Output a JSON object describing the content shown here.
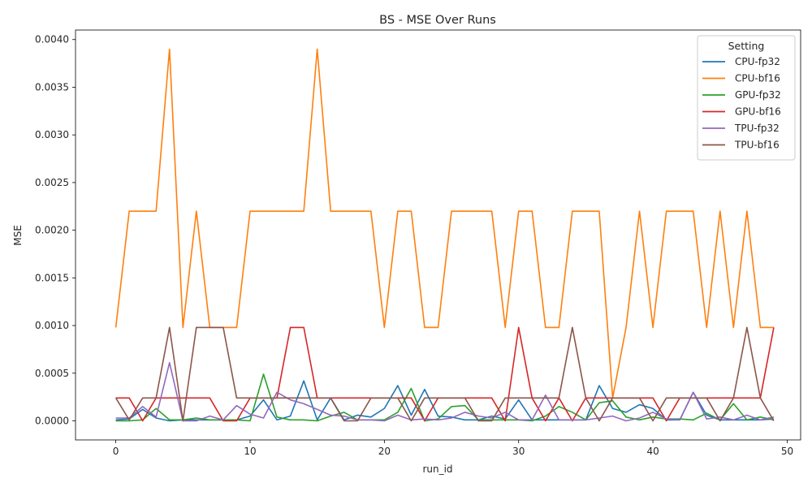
{
  "chart_data": {
    "type": "line",
    "title": "BS - MSE Over Runs",
    "xlabel": "run_id",
    "ylabel": "MSE",
    "xlim": [
      -3,
      51
    ],
    "ylim": [
      -0.0002,
      0.0041
    ],
    "xticks": [
      0,
      10,
      20,
      30,
      40,
      50
    ],
    "xtick_labels": [
      "0",
      "10",
      "20",
      "30",
      "40",
      "50"
    ],
    "yticks": [
      0,
      0.0005,
      0.001,
      0.0015,
      0.002,
      0.0025,
      0.003,
      0.0035,
      0.004
    ],
    "ytick_labels": [
      "0.0000",
      "0.0005",
      "0.0010",
      "0.0015",
      "0.0020",
      "0.0025",
      "0.0030",
      "0.0035",
      "0.0040"
    ],
    "grid": false,
    "legend": {
      "title": "Setting",
      "placement": "top-right"
    },
    "x": [
      0,
      1,
      2,
      3,
      4,
      5,
      6,
      7,
      8,
      9,
      10,
      11,
      12,
      13,
      14,
      15,
      16,
      17,
      18,
      19,
      20,
      21,
      22,
      23,
      24,
      25,
      26,
      27,
      28,
      29,
      30,
      31,
      32,
      33,
      34,
      35,
      36,
      37,
      38,
      39,
      40,
      41,
      42,
      43,
      44,
      45,
      46,
      47,
      48,
      49
    ],
    "series": [
      {
        "name": "CPU-fp32",
        "color": "#1f77b4",
        "values": [
          1e-05,
          2e-05,
          0.00012,
          3e-05,
          0.0,
          1e-05,
          1e-05,
          1e-05,
          1e-05,
          1e-05,
          5e-05,
          0.00022,
          1e-05,
          5e-05,
          0.00042,
          1e-05,
          0.00024,
          1e-05,
          6e-05,
          4e-05,
          0.00013,
          0.00037,
          6e-05,
          0.00033,
          5e-05,
          4e-05,
          1e-05,
          1e-05,
          5e-05,
          2e-05,
          0.00022,
          1e-05,
          1e-05,
          1e-05,
          1e-05,
          1e-05,
          0.00037,
          0.00013,
          9e-05,
          0.00017,
          0.00013,
          1e-05,
          1e-05,
          0.0003,
          6e-05,
          1e-05,
          1e-05,
          1e-05,
          1e-05,
          2e-05
        ]
      },
      {
        "name": "CPU-bf16",
        "color": "#ff7f0e",
        "values": [
          0.00098,
          0.0022,
          0.0022,
          0.0022,
          0.0039,
          0.00098,
          0.0022,
          0.00098,
          0.00098,
          0.00098,
          0.0022,
          0.0022,
          0.0022,
          0.0022,
          0.0022,
          0.0039,
          0.0022,
          0.0022,
          0.0022,
          0.0022,
          0.00098,
          0.0022,
          0.0022,
          0.00098,
          0.00098,
          0.0022,
          0.0022,
          0.0022,
          0.0022,
          0.00098,
          0.0022,
          0.0022,
          0.00098,
          0.00098,
          0.0022,
          0.0022,
          0.0022,
          0.00024,
          0.00098,
          0.0022,
          0.00098,
          0.0022,
          0.0022,
          0.0022,
          0.00098,
          0.0022,
          0.00098,
          0.0022,
          0.00098,
          0.00098
        ]
      },
      {
        "name": "GPU-fp32",
        "color": "#2ca02c",
        "values": [
          0.0,
          0.0,
          1e-05,
          0.00013,
          1e-05,
          1e-05,
          3e-05,
          1e-05,
          1e-05,
          1e-05,
          0.0,
          0.00049,
          4e-05,
          1e-05,
          1e-05,
          0.0,
          5e-05,
          9e-05,
          1e-05,
          1e-05,
          1e-05,
          9e-05,
          0.00034,
          0.0,
          2e-05,
          0.00015,
          0.00016,
          1e-05,
          1e-05,
          1e-05,
          1e-05,
          0.0,
          5e-05,
          0.00015,
          9e-05,
          1e-05,
          0.00019,
          0.00021,
          4e-05,
          1e-05,
          4e-05,
          2e-05,
          2e-05,
          1e-05,
          8e-05,
          1e-05,
          0.00018,
          1e-05,
          4e-05,
          1e-05
        ]
      },
      {
        "name": "GPU-bf16",
        "color": "#d62728",
        "values": [
          0.00024,
          0.00024,
          0.0,
          0.00024,
          0.00024,
          0.00024,
          0.00024,
          0.00024,
          0.0,
          0.0,
          0.00024,
          0.00024,
          0.00024,
          0.00098,
          0.00098,
          0.00024,
          0.00024,
          0.00024,
          0.00024,
          0.00024,
          0.00024,
          0.00024,
          0.00024,
          0.0,
          0.00024,
          0.00024,
          0.00024,
          0.00024,
          0.00024,
          0.0,
          0.00098,
          0.00024,
          0.0,
          0.00024,
          0.0,
          0.00024,
          0.00024,
          0.00024,
          0.00024,
          0.00024,
          0.00024,
          0.0,
          0.00024,
          0.00024,
          0.00024,
          0.00024,
          0.00024,
          0.00024,
          0.00024,
          0.00098
        ]
      },
      {
        "name": "TPU-fp32",
        "color": "#9467bd",
        "values": [
          3e-05,
          3e-05,
          0.00015,
          4e-05,
          0.00061,
          0.0,
          0.0,
          5e-05,
          1e-05,
          0.00016,
          7e-05,
          3e-05,
          0.0003,
          0.00022,
          0.00018,
          0.00012,
          6e-05,
          5e-05,
          1e-05,
          1e-05,
          0.0,
          6e-05,
          1e-05,
          2e-05,
          1e-05,
          3e-05,
          9e-05,
          5e-05,
          3e-05,
          9e-05,
          1e-05,
          1e-05,
          0.00027,
          1e-05,
          1e-05,
          1e-05,
          3e-05,
          5e-05,
          0.0,
          3e-05,
          9e-05,
          2e-05,
          1e-05,
          0.0003,
          2e-05,
          4e-05,
          1e-05,
          6e-05,
          1e-05,
          4e-05
        ]
      },
      {
        "name": "TPU-bf16",
        "color": "#8c564b",
        "values": [
          0.00024,
          1e-05,
          0.00024,
          0.00024,
          0.00098,
          0.0,
          0.00098,
          0.00098,
          0.00098,
          0.00024,
          0.00024,
          0.00024,
          0.00024,
          0.00024,
          0.00024,
          0.00024,
          0.00024,
          0.0,
          0.0,
          0.00024,
          0.00024,
          0.00024,
          0.0,
          0.00024,
          0.00024,
          0.00024,
          0.00024,
          0.0,
          0.0,
          0.00024,
          0.00024,
          0.00024,
          0.00024,
          0.00024,
          0.00098,
          0.00024,
          0.0,
          0.00024,
          0.00024,
          0.00024,
          0.0,
          0.00024,
          0.00024,
          0.00024,
          0.00024,
          0.0,
          0.00024,
          0.00098,
          0.00024,
          0.0
        ]
      }
    ]
  }
}
